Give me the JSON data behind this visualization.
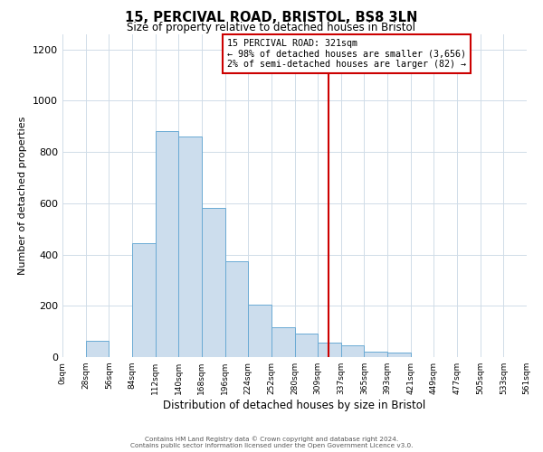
{
  "title": "15, PERCIVAL ROAD, BRISTOL, BS8 3LN",
  "subtitle": "Size of property relative to detached houses in Bristol",
  "xlabel": "Distribution of detached houses by size in Bristol",
  "ylabel": "Number of detached properties",
  "bin_edges": [
    0,
    28,
    56,
    84,
    112,
    140,
    168,
    196,
    224,
    252,
    280,
    308,
    336,
    364,
    392,
    420,
    448,
    476,
    504,
    532,
    560
  ],
  "bar_heights": [
    0,
    65,
    0,
    445,
    880,
    860,
    580,
    375,
    205,
    115,
    90,
    55,
    45,
    20,
    18,
    0,
    0,
    0,
    0,
    0
  ],
  "bar_facecolor": "#ccdded",
  "bar_edgecolor": "#6aaad4",
  "vline_x": 321,
  "vline_color": "#cc0000",
  "ylim": [
    0,
    1260
  ],
  "yticks": [
    0,
    200,
    400,
    600,
    800,
    1000,
    1200
  ],
  "xtick_labels": [
    "0sqm",
    "28sqm",
    "56sqm",
    "84sqm",
    "112sqm",
    "140sqm",
    "168sqm",
    "196sqm",
    "224sqm",
    "252sqm",
    "280sqm",
    "309sqm",
    "337sqm",
    "365sqm",
    "393sqm",
    "421sqm",
    "449sqm",
    "477sqm",
    "505sqm",
    "533sqm",
    "561sqm"
  ],
  "annotation_title": "15 PERCIVAL ROAD: 321sqm",
  "annotation_line1": "← 98% of detached houses are smaller (3,656)",
  "annotation_line2": "2% of semi-detached houses are larger (82) →",
  "annotation_box_color": "#cc0000",
  "footer_line1": "Contains HM Land Registry data © Crown copyright and database right 2024.",
  "footer_line2": "Contains public sector information licensed under the Open Government Licence v3.0.",
  "background_color": "#ffffff",
  "grid_color": "#d0dce8"
}
